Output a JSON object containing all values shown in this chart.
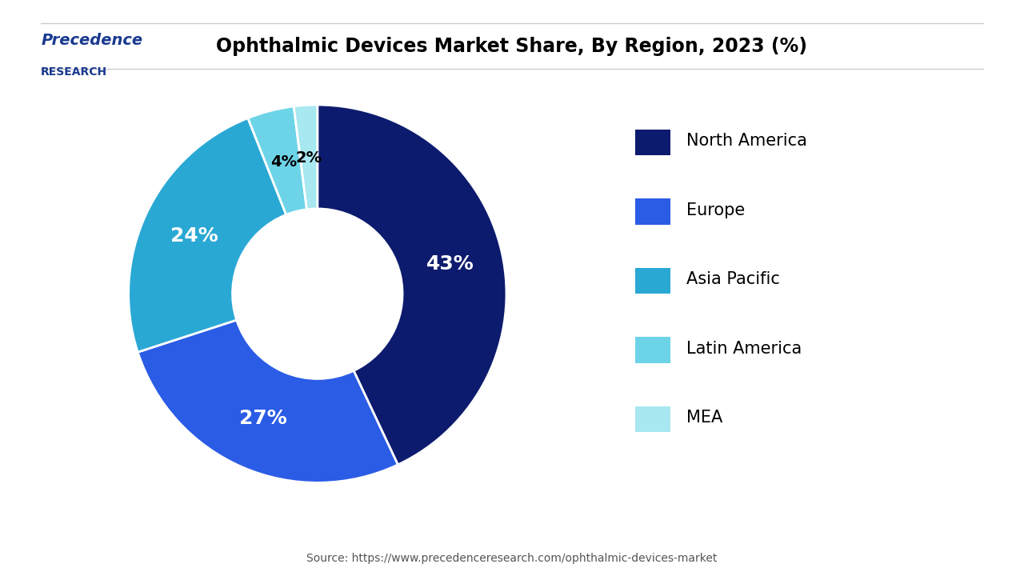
{
  "title": "Ophthalmic Devices Market Share, By Region, 2023 (%)",
  "values": [
    43,
    27,
    24,
    4,
    2
  ],
  "labels": [
    "North America",
    "Europe",
    "Asia Pacific",
    "Latin America",
    "MEA"
  ],
  "colors": [
    "#0d1b6e",
    "#2b5ce6",
    "#2aa8d4",
    "#6dd4e8",
    "#a8e8f0"
  ],
  "pct_labels": [
    "43%",
    "27%",
    "24%",
    "4%",
    "2%"
  ],
  "source": "Source: https://www.precedenceresearch.com/ophthalmic-devices-market",
  "bg_color": "#ffffff",
  "text_color_dark": "#000000",
  "text_color_white": "#ffffff",
  "logo_text_top": "Precedence",
  "logo_text_bottom": "RESEARCH"
}
